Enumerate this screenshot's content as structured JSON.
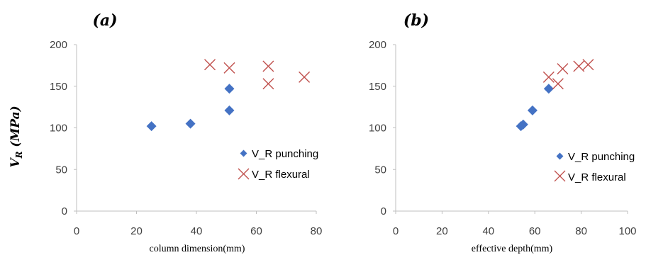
{
  "figure": {
    "ylabel_main": "V",
    "ylabel_sub": "R",
    "ylabel_units": " (MPa)"
  },
  "colors": {
    "punching": "#4472C4",
    "flexural": "#C0504D",
    "axis": "#BFBFBF"
  },
  "chart_data": [
    {
      "panel": "(a)",
      "type": "scatter",
      "title": "(a)",
      "xlabel": "column dimension(mm)",
      "ylabel": "V_R (MPa)",
      "xlim": [
        0,
        80
      ],
      "ylim": [
        0,
        200
      ],
      "xticks": [
        0,
        20,
        40,
        60,
        80
      ],
      "yticks": [
        0,
        50,
        100,
        150,
        200
      ],
      "grid": false,
      "legend_position": "right",
      "series": [
        {
          "name": "V_R punching",
          "marker": "diamond",
          "points": [
            [
              25,
              102
            ],
            [
              38,
              105
            ],
            [
              51,
              121
            ],
            [
              51,
              147
            ]
          ]
        },
        {
          "name": "V_R flexural",
          "marker": "x",
          "points": [
            [
              44.5,
              176
            ],
            [
              51,
              172
            ],
            [
              64,
              174
            ],
            [
              64,
              153
            ],
            [
              76,
              161
            ]
          ]
        }
      ]
    },
    {
      "panel": "(b)",
      "type": "scatter",
      "title": "(b)",
      "xlabel": "effective depth(mm)",
      "ylabel": "",
      "xlim": [
        0,
        100
      ],
      "ylim": [
        0,
        200
      ],
      "xticks": [
        0,
        20,
        40,
        60,
        80,
        100
      ],
      "yticks": [
        0,
        50,
        100,
        150,
        200
      ],
      "grid": false,
      "legend_position": "right",
      "series": [
        {
          "name": "V_R punching",
          "marker": "diamond",
          "points": [
            [
              54,
              102
            ],
            [
              55,
              104
            ],
            [
              59,
              121
            ],
            [
              66,
              147
            ]
          ]
        },
        {
          "name": "V_R flexural",
          "marker": "x",
          "points": [
            [
              66,
              161
            ],
            [
              70,
              153
            ],
            [
              72,
              171
            ],
            [
              79,
              174
            ],
            [
              83,
              176
            ]
          ]
        }
      ]
    }
  ]
}
